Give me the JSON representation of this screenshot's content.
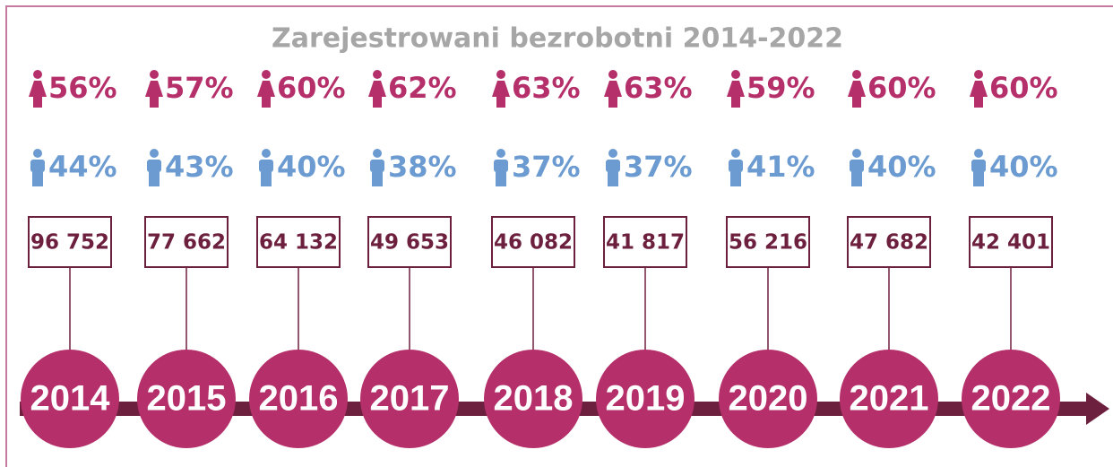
{
  "title": "Zarejestrowani bezrobotni 2014-2022",
  "years": [
    {
      "year": "2014",
      "female": "56%",
      "male": "44%",
      "count": "96 752"
    },
    {
      "year": "2015",
      "female": "57%",
      "male": "43%",
      "count": "77 662"
    },
    {
      "year": "2016",
      "female": "60%",
      "male": "40%",
      "count": "64 132"
    },
    {
      "year": "2017",
      "female": "62%",
      "male": "38%",
      "count": "49 653"
    },
    {
      "year": "2018",
      "female": "63%",
      "male": "37%",
      "count": "46 082"
    },
    {
      "year": "2019",
      "female": "63%",
      "male": "37%",
      "count": "41 817"
    },
    {
      "year": "2020",
      "female": "59%",
      "male": "41%",
      "count": "56 216"
    },
    {
      "year": "2021",
      "female": "60%",
      "male": "40%",
      "count": "47 682"
    },
    {
      "year": "2022",
      "female": "60%",
      "male": "40%",
      "count": "42 401"
    }
  ]
}
